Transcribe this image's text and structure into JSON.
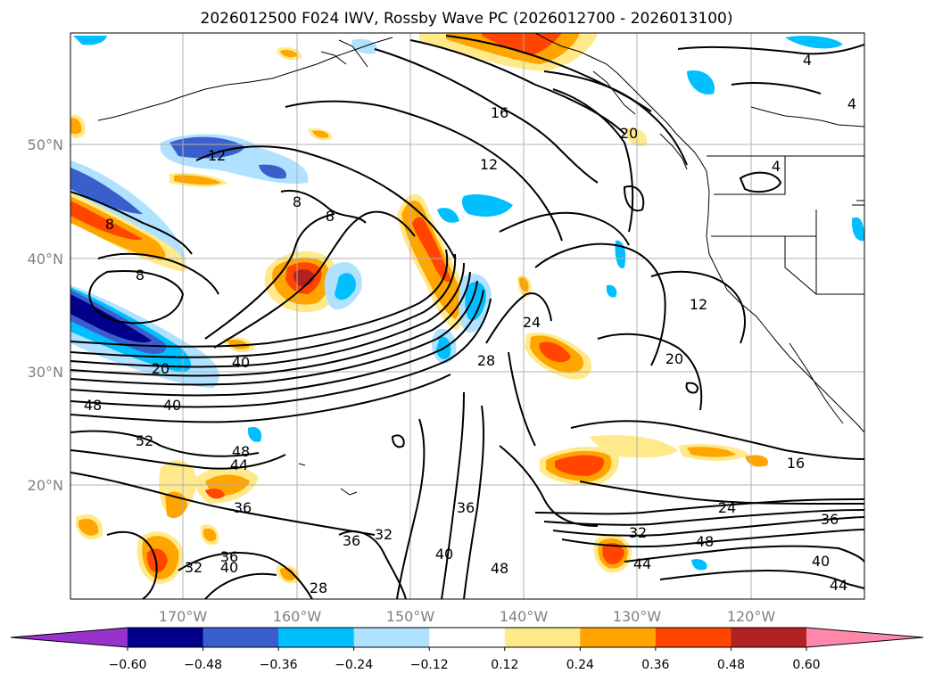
{
  "title": "2026012500 F024 IWV, Rossby Wave PC (2026012700 - 2026013100)",
  "lat_labels": [
    "50°N",
    "40°N",
    "30°N",
    "20°N"
  ],
  "lon_labels": [
    "170°W",
    "160°W",
    "150°W",
    "140°W",
    "130°W",
    "120°W"
  ],
  "colorbar": {
    "tick_labels": [
      "−0.60",
      "−0.48",
      "−0.36",
      "−0.24",
      "−0.12",
      "0.12",
      "0.24",
      "0.36",
      "0.48",
      "0.60"
    ],
    "colors": [
      "#9932cc",
      "#00008b",
      "#3a5fcd",
      "#00bfff",
      "#b0e2ff",
      "#ffffff",
      "#ffe98a",
      "#ffa500",
      "#ff4500",
      "#b22222",
      "#ff88aa"
    ]
  },
  "contour_labels": [
    "4",
    "4",
    "16",
    "20",
    "12",
    "12",
    "8",
    "8",
    "8",
    "8",
    "4",
    "20",
    "24",
    "28",
    "12",
    "20",
    "48",
    "40",
    "52",
    "48",
    "44",
    "16",
    "36",
    "24",
    "36",
    "36",
    "32",
    "36",
    "32",
    "48",
    "40",
    "48",
    "44",
    "40",
    "36",
    "40",
    "32",
    "28",
    "40",
    "44"
  ],
  "colors": {
    "grid": "#b0b0b0",
    "contour": "#000000",
    "tick": "#808080"
  }
}
